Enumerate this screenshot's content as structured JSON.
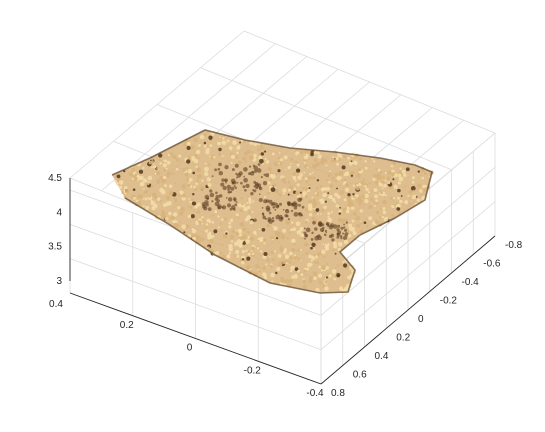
{
  "chart_data": {
    "type": "scatter",
    "plot_kind": "3d point cloud",
    "grid": true,
    "box": true,
    "view": "3-D perspective, axes box with grid",
    "colormap": "tan / sandy brown with dark brown edges",
    "colors": {
      "axis": "#262626",
      "grid": "#dcdcdc",
      "cloud_light": "#f3dca6",
      "cloud_mid": "#d8b27a",
      "cloud_dark": "#5a3e23"
    },
    "axes": {
      "z": {
        "ticks": [
          "3",
          "3.5",
          "4",
          "4.5"
        ],
        "lim": [
          3,
          4.5
        ]
      },
      "x": {
        "ticks": [
          "0.4",
          "0.2",
          "0",
          "-0.2",
          "-0.4"
        ],
        "lim": [
          -0.4,
          0.4
        ]
      },
      "y": {
        "ticks": [
          "-0.8",
          "-0.6",
          "-0.4",
          "-0.2",
          "0",
          "0.2",
          "0.4",
          "0.6",
          "0.8"
        ],
        "lim": [
          -0.8,
          0.8
        ]
      }
    }
  }
}
